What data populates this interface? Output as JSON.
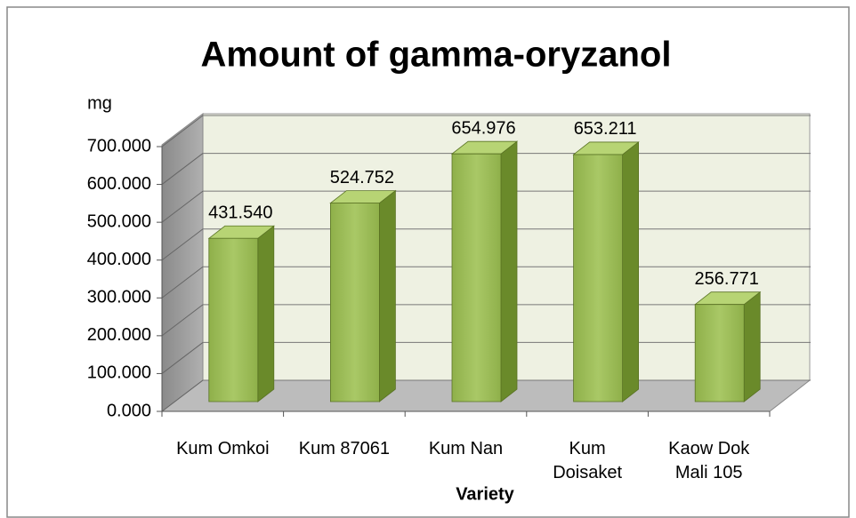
{
  "chart_data": {
    "type": "bar3d",
    "title": "Amount of gamma-oryzanol",
    "ylabel": "mg",
    "xlabel": "Variety",
    "categories": [
      "Kum Omkoi",
      "Kum 87061",
      "Kum Nan",
      "Kum Doisaket",
      "Kaow Dok Mali 105"
    ],
    "values": [
      431.54,
      524.752,
      654.976,
      653.211,
      256.771
    ],
    "value_labels": [
      "431.540",
      "524.752",
      "654.976",
      "653.211",
      "256.771"
    ],
    "color": "#9bbb59",
    "ylim": [
      0,
      700
    ],
    "yticks": [
      {
        "value": 0,
        "label": "0.000"
      },
      {
        "value": 100,
        "label": "100.000"
      },
      {
        "value": 200,
        "label": "200.000"
      },
      {
        "value": 300,
        "label": "300.000"
      },
      {
        "value": 400,
        "label": "400.000"
      },
      {
        "value": 500,
        "label": "500.000"
      },
      {
        "value": 600,
        "label": "600.000"
      },
      {
        "value": 700,
        "label": "700.000"
      }
    ],
    "grid": true
  }
}
